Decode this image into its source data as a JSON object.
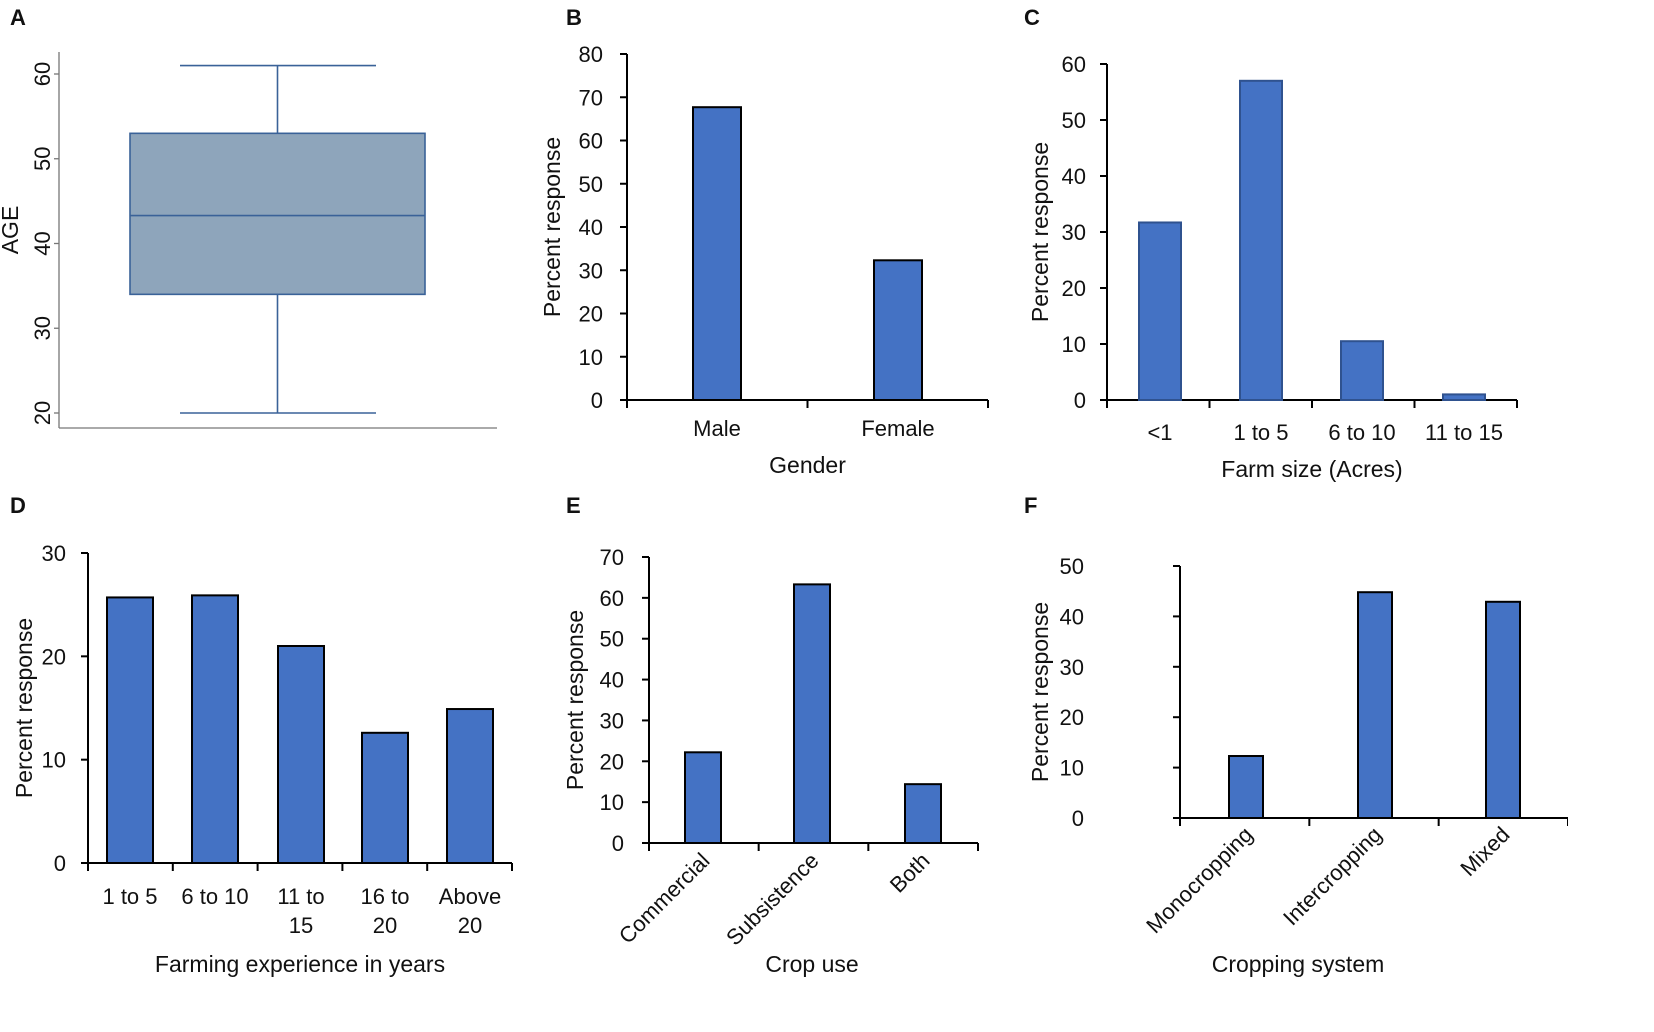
{
  "chart_data": [
    {
      "id": "A",
      "panel_label": "A",
      "type": "box",
      "ylabel": "AGE",
      "yticks": [
        20,
        30,
        40,
        50,
        60
      ],
      "box": {
        "min": 20,
        "q1": 34,
        "median": 43.3,
        "q3": 53,
        "max": 61
      },
      "colors": {
        "box": "#8ea5bb",
        "line": "#3a6298"
      }
    },
    {
      "id": "B",
      "panel_label": "B",
      "type": "bar",
      "categories": [
        "Male",
        "Female"
      ],
      "values": [
        67.7,
        32.3
      ],
      "xlabel": "Gender",
      "ylabel": "Percent response",
      "ylim": [
        0,
        80
      ],
      "yticks": [
        0,
        10,
        20,
        30,
        40,
        50,
        60,
        70,
        80
      ],
      "colors": {
        "bar": "#4472c4",
        "edge": "#000000"
      }
    },
    {
      "id": "C",
      "panel_label": "C",
      "type": "bar",
      "categories": [
        "<1",
        "1 to 5",
        "6 to 10",
        "11 to 15"
      ],
      "values": [
        31.7,
        57,
        10.5,
        1
      ],
      "xlabel": "Farm size  (Acres)",
      "ylabel": "Percent response",
      "ylim": [
        0,
        60
      ],
      "yticks": [
        0,
        10,
        20,
        30,
        40,
        50,
        60
      ],
      "colors": {
        "bar": "#4472c4",
        "edge": "#2f528f"
      }
    },
    {
      "id": "D",
      "panel_label": "D",
      "type": "bar",
      "categories": [
        [
          "1 to 5"
        ],
        [
          "6 to 10"
        ],
        [
          "11 to",
          "15"
        ],
        [
          "16 to",
          "20"
        ],
        [
          "Above",
          "20"
        ]
      ],
      "values": [
        25.7,
        25.9,
        21,
        12.6,
        14.9
      ],
      "xlabel": "Farming experience in years",
      "ylabel": "Percent response",
      "ylim": [
        0,
        30
      ],
      "yticks": [
        0,
        10,
        20,
        30
      ],
      "colors": {
        "bar": "#4472c4",
        "edge": "#000000"
      }
    },
    {
      "id": "E",
      "panel_label": "E",
      "type": "bar",
      "categories": [
        "Commercial",
        "Subsistence",
        "Both"
      ],
      "values": [
        22.2,
        63.3,
        14.4
      ],
      "xlabel": "Crop use",
      "ylabel": "Percent response",
      "ylim": [
        0,
        70
      ],
      "yticks": [
        0,
        10,
        20,
        30,
        40,
        50,
        60,
        70
      ],
      "colors": {
        "bar": "#4472c4",
        "edge": "#000000"
      }
    },
    {
      "id": "F",
      "panel_label": "F",
      "type": "bar",
      "categories": [
        "Monocropping",
        "Intercropping",
        "Mixed"
      ],
      "values": [
        12.3,
        44.8,
        42.9
      ],
      "xlabel": "Cropping system",
      "ylabel": "Percent response",
      "ylim": [
        0,
        50
      ],
      "yticks": [
        0,
        10,
        20,
        30,
        40,
        50
      ],
      "colors": {
        "bar": "#4472c4",
        "edge": "#000000"
      }
    }
  ]
}
